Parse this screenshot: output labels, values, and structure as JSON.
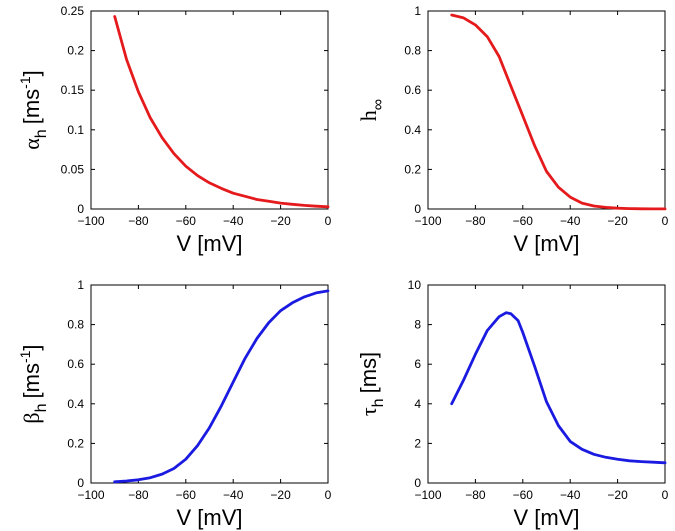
{
  "colors": {
    "red": "#e41a1c",
    "blue": "#1a1ae0"
  },
  "chart_data": [
    {
      "id": "alpha_h",
      "type": "line",
      "xlabel": "V [mV]",
      "ylabel": {
        "symbol": "α",
        "sub": "h",
        "unit": "[ms",
        "sup": "-1",
        "close": "]"
      },
      "xlim": [
        -100,
        0
      ],
      "ylim": [
        0,
        0.25
      ],
      "xticks": [
        "-100",
        "-80",
        "-60",
        "-40",
        "-20",
        "0"
      ],
      "yticks": [
        "0",
        "0.05",
        "0.1",
        "0.15",
        "0.2",
        "0.25"
      ],
      "series": [
        {
          "color": "red",
          "x": [
            -90,
            -85,
            -80,
            -75,
            -70,
            -65,
            -60,
            -55,
            -50,
            -45,
            -40,
            -35,
            -30,
            -25,
            -20,
            -15,
            -10,
            -5,
            0
          ],
          "y": [
            0.243,
            0.189,
            0.148,
            0.115,
            0.09,
            0.07,
            0.054,
            0.042,
            0.033,
            0.026,
            0.02,
            0.016,
            0.012,
            0.0097,
            0.0075,
            0.0059,
            0.0046,
            0.0035,
            0.0028
          ]
        }
      ]
    },
    {
      "id": "h_inf",
      "type": "line",
      "xlabel": "V [mV]",
      "ylabel": {
        "symbol": "h",
        "sub": "∞"
      },
      "xlim": [
        -100,
        0
      ],
      "ylim": [
        0,
        1
      ],
      "xticks": [
        "-100",
        "-80",
        "-60",
        "-40",
        "-20",
        "0"
      ],
      "yticks": [
        "0",
        "0.2",
        "0.4",
        "0.6",
        "0.8",
        "1"
      ],
      "series": [
        {
          "color": "red",
          "x": [
            -90,
            -85,
            -80,
            -75,
            -70,
            -65,
            -60,
            -55,
            -50,
            -45,
            -40,
            -35,
            -30,
            -25,
            -20,
            -15,
            -10,
            -5,
            0
          ],
          "y": [
            0.98,
            0.965,
            0.93,
            0.87,
            0.77,
            0.62,
            0.47,
            0.32,
            0.19,
            0.11,
            0.06,
            0.03,
            0.015,
            0.008,
            0.004,
            0.002,
            0.001,
            0.0005,
            0.0003
          ]
        }
      ]
    },
    {
      "id": "beta_h",
      "type": "line",
      "xlabel": "V [mV]",
      "ylabel": {
        "symbol": "β",
        "sub": "h",
        "unit": "[ms",
        "sup": "-1",
        "close": "]"
      },
      "xlim": [
        -100,
        0
      ],
      "ylim": [
        0,
        1
      ],
      "xticks": [
        "-100",
        "-80",
        "-60",
        "-40",
        "-20",
        "0"
      ],
      "yticks": [
        "0",
        "0.2",
        "0.4",
        "0.6",
        "0.8",
        "1"
      ],
      "series": [
        {
          "color": "blue",
          "x": [
            -90,
            -85,
            -80,
            -75,
            -70,
            -65,
            -60,
            -55,
            -50,
            -45,
            -40,
            -35,
            -30,
            -25,
            -20,
            -15,
            -10,
            -5,
            0
          ],
          "y": [
            0.006,
            0.01,
            0.016,
            0.027,
            0.045,
            0.073,
            0.12,
            0.19,
            0.28,
            0.39,
            0.51,
            0.63,
            0.73,
            0.81,
            0.87,
            0.91,
            0.94,
            0.96,
            0.97
          ]
        }
      ]
    },
    {
      "id": "tau_h",
      "type": "line",
      "xlabel": "V [mV]",
      "ylabel": {
        "symbol": "τ",
        "sub": "h",
        "unit": "[ms]"
      },
      "xlim": [
        -100,
        0
      ],
      "ylim": [
        0,
        10
      ],
      "xticks": [
        "-100",
        "-80",
        "-60",
        "-40",
        "-20",
        "0"
      ],
      "yticks": [
        "0",
        "2",
        "4",
        "6",
        "8",
        "10"
      ],
      "series": [
        {
          "color": "blue",
          "x": [
            -90,
            -85,
            -80,
            -75,
            -70,
            -67,
            -65,
            -62,
            -60,
            -55,
            -50,
            -45,
            -40,
            -35,
            -30,
            -25,
            -20,
            -15,
            -10,
            -5,
            0
          ],
          "y": [
            4.0,
            5.2,
            6.5,
            7.7,
            8.4,
            8.6,
            8.55,
            8.2,
            7.6,
            5.9,
            4.1,
            2.9,
            2.1,
            1.7,
            1.45,
            1.3,
            1.2,
            1.12,
            1.08,
            1.05,
            1.02
          ]
        }
      ]
    }
  ]
}
